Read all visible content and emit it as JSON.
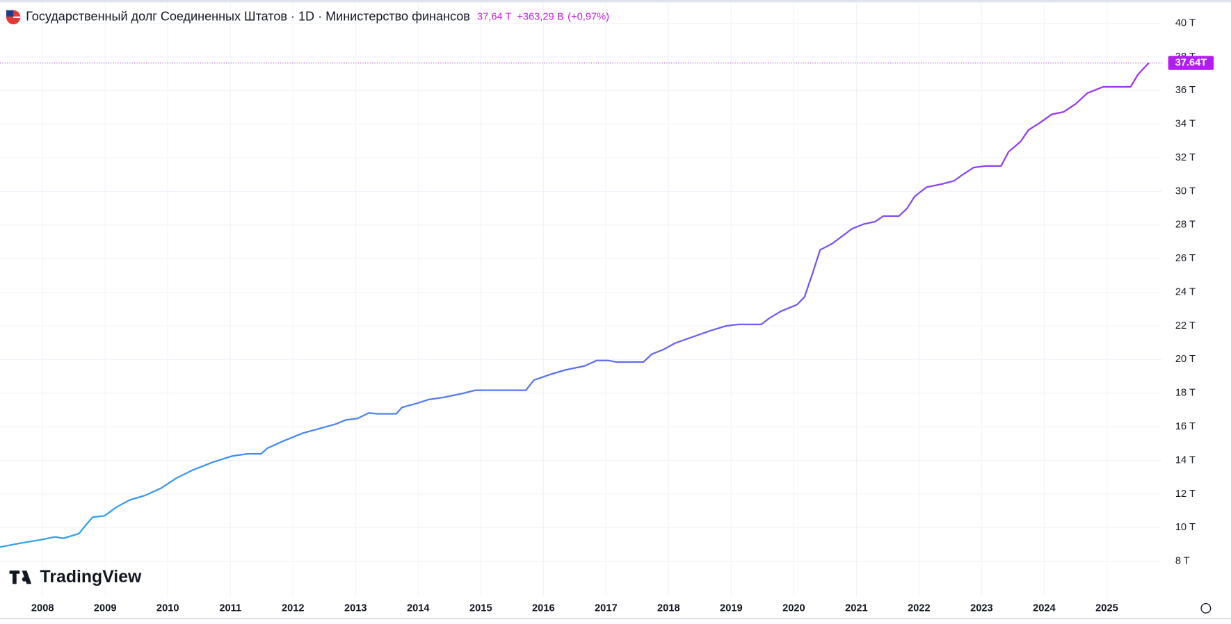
{
  "chart_data": {
    "type": "line",
    "title": "Государственный долг Соединенных Штатов · 1D · Министерство финансов",
    "last_value": "37,64 T",
    "change": "+363,29 B",
    "change_pct": "(+0,97%)",
    "price_label": "37.64T",
    "brand": "TradingView",
    "series": [
      {
        "name": "Государственный долг Соединенных Штатов",
        "colors": [
          "#2ea6e8",
          "#5b6ef0",
          "#a32cf2"
        ],
        "x": [
          2007.32,
          2007.64,
          2007.95,
          2008.2,
          2008.33,
          2008.58,
          2008.68,
          2008.8,
          2008.99,
          2009.18,
          2009.39,
          2009.64,
          2009.89,
          2010.14,
          2010.39,
          2010.71,
          2011.02,
          2011.27,
          2011.49,
          2011.59,
          2011.84,
          2012.15,
          2012.46,
          2012.69,
          2012.84,
          2013.03,
          2013.21,
          2013.34,
          2013.65,
          2013.74,
          2013.97,
          2014.16,
          2014.41,
          2014.72,
          2014.91,
          2015.1,
          2015.72,
          2015.85,
          2016.1,
          2016.35,
          2016.66,
          2016.85,
          2017.04,
          2017.16,
          2017.6,
          2017.73,
          2017.92,
          2018.1,
          2018.35,
          2018.67,
          2018.92,
          2019.11,
          2019.48,
          2019.61,
          2019.8,
          2020.05,
          2020.17,
          2020.3,
          2020.42,
          2020.61,
          2020.8,
          2020.93,
          2021.12,
          2021.3,
          2021.43,
          2021.68,
          2021.81,
          2021.93,
          2022.12,
          2022.37,
          2022.56,
          2022.68,
          2022.87,
          2023.06,
          2023.31,
          2023.43,
          2023.62,
          2023.75,
          2023.93,
          2024.12,
          2024.31,
          2024.5,
          2024.69,
          2024.94,
          2025.38,
          2025.5,
          2025.67
        ],
        "values": [
          8.84,
          9.07,
          9.26,
          9.45,
          9.36,
          9.64,
          10.1,
          10.62,
          10.7,
          11.22,
          11.64,
          11.92,
          12.34,
          12.95,
          13.41,
          13.88,
          14.25,
          14.39,
          14.39,
          14.72,
          15.14,
          15.61,
          15.93,
          16.17,
          16.4,
          16.49,
          16.82,
          16.77,
          16.77,
          17.15,
          17.38,
          17.61,
          17.75,
          17.99,
          18.17,
          18.17,
          18.17,
          18.78,
          19.1,
          19.38,
          19.62,
          19.94,
          19.94,
          19.85,
          19.85,
          20.32,
          20.6,
          20.97,
          21.3,
          21.72,
          22.0,
          22.09,
          22.09,
          22.46,
          22.88,
          23.26,
          23.72,
          25.12,
          26.52,
          26.89,
          27.41,
          27.78,
          28.06,
          28.2,
          28.53,
          28.53,
          29.0,
          29.7,
          30.25,
          30.44,
          30.63,
          30.95,
          31.42,
          31.51,
          31.51,
          32.35,
          32.96,
          33.66,
          34.08,
          34.59,
          34.73,
          35.2,
          35.85,
          36.22,
          36.22,
          36.97,
          37.64
        ]
      }
    ],
    "xlim": [
      2007.32,
      2025.88
    ],
    "xticks": [
      2008,
      2009,
      2010,
      2011,
      2012,
      2013,
      2014,
      2015,
      2016,
      2017,
      2018,
      2019,
      2020,
      2021,
      2022,
      2023,
      2024,
      2025
    ],
    "ylim": [
      5.9,
      41.2
    ],
    "yticks": [
      {
        "value": 8,
        "label": "8 T"
      },
      {
        "value": 10,
        "label": "10 T"
      },
      {
        "value": 12,
        "label": "12 T"
      },
      {
        "value": 14,
        "label": "14 T"
      },
      {
        "value": 16,
        "label": "16 T"
      },
      {
        "value": 18,
        "label": "18 T"
      },
      {
        "value": 20,
        "label": "20 T"
      },
      {
        "value": 22,
        "label": "22 T"
      },
      {
        "value": 24,
        "label": "24 T"
      },
      {
        "value": 26,
        "label": "26 T"
      },
      {
        "value": 28,
        "label": "28 T"
      },
      {
        "value": 30,
        "label": "30 T"
      },
      {
        "value": 32,
        "label": "32 T"
      },
      {
        "value": 34,
        "label": "34 T"
      },
      {
        "value": 36,
        "label": "36 T"
      },
      {
        "value": 38,
        "label": "38 T"
      },
      {
        "value": 40,
        "label": "40 T"
      }
    ],
    "grid": true
  }
}
